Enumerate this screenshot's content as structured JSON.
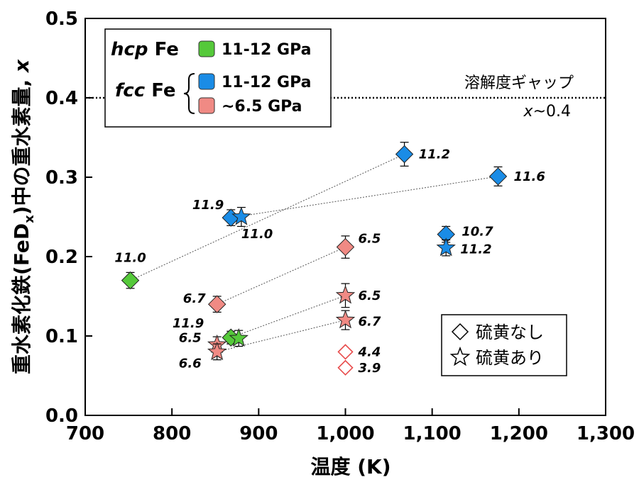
{
  "chart_data": {
    "type": "scatter",
    "xlabel": "温度 (K)",
    "ylabel": "重水素化鉄(FeDx)中の重水素量, x",
    "ylabel_parts": [
      "重水素化鉄(FeD",
      "x",
      ")中の重水素量, ",
      "x"
    ],
    "xlim": [
      700,
      1300
    ],
    "ylim": [
      0,
      0.5
    ],
    "xticks": [
      700,
      800,
      900,
      1000,
      1100,
      1200,
      1300
    ],
    "xtick_labels": [
      "700",
      "800",
      "900",
      "1,000",
      "1,100",
      "1,200",
      "1,300"
    ],
    "yticks": [
      0.0,
      0.1,
      0.2,
      0.3,
      0.4,
      0.5
    ],
    "ytick_labels": [
      "0.0",
      "0.1",
      "0.2",
      "0.3",
      "0.4",
      "0.5"
    ],
    "grid": false,
    "solubility_gap": {
      "y": 0.4,
      "label": "溶解度ギャップ",
      "sublabel_var": "x",
      "sublabel_rest": "~0.4"
    },
    "legend": {
      "placement": "top-left",
      "hcp_label_italic": "hcp",
      "hcp_label_rest": " Fe",
      "fcc_label_italic": "fcc",
      "fcc_label_rest": " Fe",
      "entries": [
        {
          "phase": "hcp",
          "label": "11-12 GPa",
          "color": "#55c93a"
        },
        {
          "phase": "fcc",
          "label": "11-12 GPa",
          "color": "#1a8ce6"
        },
        {
          "phase": "fcc",
          "label": "~6.5 GPa",
          "color": "#f08a84"
        }
      ]
    },
    "marker_legend": {
      "placement": "bottom-right",
      "entries": [
        {
          "marker": "diamond",
          "label": "硫黄なし"
        },
        {
          "marker": "star",
          "label": "硫黄あり"
        }
      ]
    },
    "colors": {
      "hcp": "#55c93a",
      "fcc_high": "#1a8ce6",
      "fcc_low": "#f08a84",
      "open": "#e84a4a"
    },
    "series": [
      {
        "name": "hcp Fe 11-12 GPa",
        "color": "#55c93a",
        "points": [
          {
            "x": 752,
            "y": 0.17,
            "err": 0.01,
            "marker": "diamond",
            "label": "11.0"
          },
          {
            "x": 868,
            "y": 0.098,
            "err": 0.008,
            "marker": "diamond",
            "label": "11.9"
          },
          {
            "x": 877,
            "y": 0.097,
            "err": 0.01,
            "marker": "star",
            "label": ""
          }
        ]
      },
      {
        "name": "fcc Fe 11-12 GPa",
        "color": "#1a8ce6",
        "points": [
          {
            "x": 868,
            "y": 0.249,
            "err": 0.01,
            "marker": "diamond",
            "label": "11.9"
          },
          {
            "x": 880,
            "y": 0.25,
            "err": 0.012,
            "marker": "star",
            "label": "11.0"
          },
          {
            "x": 1068,
            "y": 0.329,
            "err": 0.015,
            "marker": "diamond",
            "label": "11.2"
          },
          {
            "x": 1176,
            "y": 0.301,
            "err": 0.012,
            "marker": "diamond",
            "label": "11.6"
          },
          {
            "x": 1116,
            "y": 0.228,
            "err": 0.01,
            "marker": "diamond",
            "label": "10.7"
          },
          {
            "x": 1116,
            "y": 0.211,
            "err": 0.01,
            "marker": "star",
            "label": "11.2"
          }
        ]
      },
      {
        "name": "fcc Fe ~6.5 GPa",
        "color": "#f08a84",
        "points": [
          {
            "x": 852,
            "y": 0.14,
            "err": 0.01,
            "marker": "diamond",
            "label": "6.7"
          },
          {
            "x": 852,
            "y": 0.089,
            "err": 0.01,
            "marker": "star",
            "label": "6.5"
          },
          {
            "x": 852,
            "y": 0.08,
            "err": 0.01,
            "marker": "star",
            "label": "6.6"
          },
          {
            "x": 1000,
            "y": 0.212,
            "err": 0.014,
            "marker": "diamond",
            "label": "6.5"
          },
          {
            "x": 1000,
            "y": 0.151,
            "err": 0.015,
            "marker": "star",
            "label": "6.5"
          },
          {
            "x": 1000,
            "y": 0.12,
            "err": 0.012,
            "marker": "star",
            "label": "6.7"
          }
        ]
      },
      {
        "name": "open diamonds",
        "color": "#e84a4a",
        "open": true,
        "points": [
          {
            "x": 1000,
            "y": 0.08,
            "err": 0,
            "marker": "open-diamond",
            "label": "4.4"
          },
          {
            "x": 1000,
            "y": 0.06,
            "err": 0,
            "marker": "open-diamond",
            "label": "3.9"
          }
        ]
      }
    ],
    "connectors": [
      [
        [
          752,
          0.17
        ],
        [
          1068,
          0.329
        ]
      ],
      [
        [
          868,
          0.249
        ],
        [
          1176,
          0.301
        ]
      ],
      [
        [
          852,
          0.14
        ],
        [
          1000,
          0.212
        ]
      ],
      [
        [
          868,
          0.098
        ],
        [
          1000,
          0.151
        ]
      ],
      [
        [
          852,
          0.08
        ],
        [
          1000,
          0.12
        ]
      ]
    ]
  }
}
